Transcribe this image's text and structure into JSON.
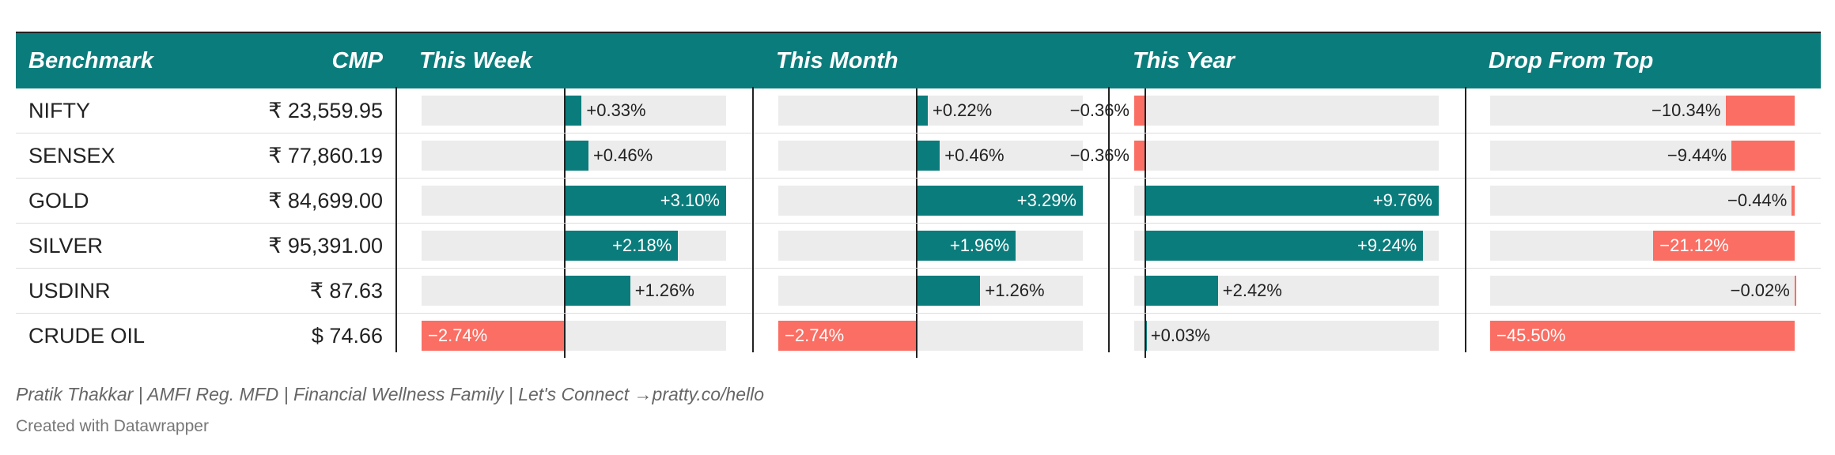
{
  "chart_data": {
    "type": "table",
    "columns": [
      "Benchmark",
      "CMP",
      "This Week",
      "This Month",
      "This Year",
      "Drop From Top"
    ],
    "rows": [
      {
        "name": "NIFTY",
        "cmp": "₹ 23,559.95",
        "week": 0.33,
        "month": 0.22,
        "year": -0.36,
        "drop": -10.34
      },
      {
        "name": "SENSEX",
        "cmp": "₹ 77,860.19",
        "week": 0.46,
        "month": 0.46,
        "year": -0.36,
        "drop": -9.44
      },
      {
        "name": "GOLD",
        "cmp": "₹ 84,699.00",
        "week": 3.1,
        "month": 3.29,
        "year": 9.76,
        "drop": -0.44
      },
      {
        "name": "SILVER",
        "cmp": "₹ 95,391.00",
        "week": 2.18,
        "month": 1.96,
        "year": 9.24,
        "drop": -21.12
      },
      {
        "name": "USDINR",
        "cmp": "₹ 87.63",
        "week": 1.26,
        "month": 1.26,
        "year": 2.42,
        "drop": -0.02
      },
      {
        "name": "CRUDE OIL",
        "cmp": "$ 74.66",
        "week": -2.74,
        "month": -2.74,
        "year": 0.03,
        "drop": -45.5
      }
    ],
    "colors": {
      "positive": "#0b7c7c",
      "negative": "#fa6e63",
      "track": "#ececec",
      "header": "#0b7c7c"
    }
  },
  "footer": {
    "credit": "Pratik Thakkar | AMFI Reg. MFD | Financial Wellness Family | Let's Connect →pratty.co/hello",
    "source": "Created with Datawrapper"
  }
}
